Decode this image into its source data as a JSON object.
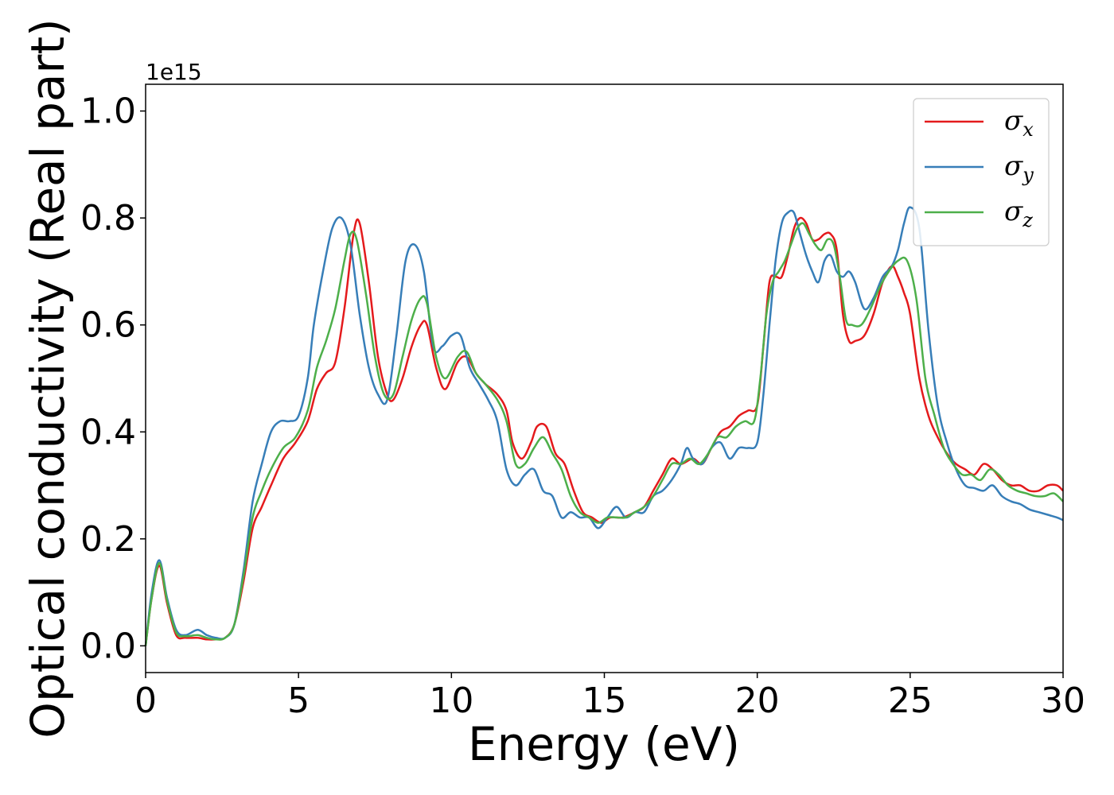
{
  "chart_data": {
    "type": "line",
    "title": "",
    "xlabel": "Energy (eV)",
    "ylabel": "Optical conductivity (Real part)",
    "y_offset_text": "1e15",
    "xlim": [
      0,
      30
    ],
    "ylim": [
      -0.05,
      1.05
    ],
    "x_ticks": [
      0,
      5,
      10,
      15,
      20,
      25,
      30
    ],
    "x_tick_labels": [
      "0",
      "5",
      "10",
      "15",
      "20",
      "25",
      "30"
    ],
    "y_ticks": [
      0.0,
      0.2,
      0.4,
      0.6,
      0.8,
      1.0
    ],
    "y_tick_labels": [
      "0.0",
      "0.2",
      "0.4",
      "0.6",
      "0.8",
      "1.0"
    ],
    "grid": false,
    "legend_position": "top-right",
    "series": [
      {
        "name": "σx",
        "name_base": "σ",
        "name_sub": "x",
        "color": "#e41a1c",
        "x": [
          0,
          0.2,
          0.45,
          0.7,
          1.0,
          1.3,
          1.7,
          2.0,
          2.3,
          2.6,
          2.9,
          3.2,
          3.5,
          3.8,
          4.1,
          4.5,
          4.9,
          5.3,
          5.6,
          5.9,
          6.2,
          6.5,
          6.8,
          7.0,
          7.3,
          7.6,
          7.9,
          8.1,
          8.4,
          8.7,
          9.0,
          9.2,
          9.5,
          9.8,
          10.2,
          10.5,
          10.8,
          11.1,
          11.5,
          11.8,
          12.0,
          12.3,
          12.6,
          12.8,
          13.1,
          13.4,
          13.7,
          14.0,
          14.3,
          14.6,
          14.9,
          15.2,
          15.6,
          16.0,
          16.3,
          16.6,
          16.9,
          17.2,
          17.5,
          17.9,
          18.2,
          18.5,
          18.8,
          19.1,
          19.4,
          19.7,
          20.0,
          20.2,
          20.4,
          20.6,
          20.8,
          21.0,
          21.2,
          21.4,
          21.6,
          21.8,
          22.0,
          22.2,
          22.4,
          22.6,
          22.8,
          23.0,
          23.2,
          23.5,
          23.8,
          24.1,
          24.4,
          24.6,
          24.8,
          25.0,
          25.3,
          25.6,
          25.9,
          26.2,
          26.5,
          26.8,
          27.1,
          27.4,
          27.7,
          28.0,
          28.3,
          28.6,
          28.9,
          29.2,
          29.5,
          29.8,
          30.0
        ],
        "y": [
          0.0,
          0.09,
          0.15,
          0.08,
          0.02,
          0.015,
          0.015,
          0.012,
          0.012,
          0.015,
          0.04,
          0.12,
          0.22,
          0.26,
          0.3,
          0.35,
          0.38,
          0.42,
          0.48,
          0.51,
          0.53,
          0.63,
          0.77,
          0.79,
          0.68,
          0.54,
          0.47,
          0.46,
          0.5,
          0.56,
          0.6,
          0.6,
          0.52,
          0.48,
          0.53,
          0.54,
          0.51,
          0.49,
          0.47,
          0.44,
          0.38,
          0.35,
          0.38,
          0.41,
          0.41,
          0.36,
          0.34,
          0.29,
          0.25,
          0.24,
          0.23,
          0.24,
          0.24,
          0.25,
          0.26,
          0.29,
          0.32,
          0.35,
          0.34,
          0.35,
          0.34,
          0.37,
          0.4,
          0.41,
          0.43,
          0.44,
          0.45,
          0.56,
          0.68,
          0.69,
          0.69,
          0.73,
          0.78,
          0.8,
          0.79,
          0.76,
          0.76,
          0.77,
          0.77,
          0.74,
          0.62,
          0.57,
          0.57,
          0.58,
          0.62,
          0.68,
          0.71,
          0.69,
          0.66,
          0.62,
          0.5,
          0.43,
          0.39,
          0.36,
          0.34,
          0.33,
          0.32,
          0.34,
          0.33,
          0.31,
          0.3,
          0.3,
          0.29,
          0.29,
          0.3,
          0.3,
          0.29
        ]
      },
      {
        "name": "σy",
        "name_base": "σ",
        "name_sub": "y",
        "color": "#377eb8",
        "x": [
          0,
          0.2,
          0.45,
          0.7,
          1.0,
          1.3,
          1.7,
          2.0,
          2.3,
          2.6,
          2.9,
          3.2,
          3.5,
          3.8,
          4.1,
          4.4,
          4.7,
          5.0,
          5.3,
          5.5,
          5.8,
          6.1,
          6.4,
          6.7,
          7.0,
          7.3,
          7.6,
          7.9,
          8.2,
          8.5,
          8.8,
          9.1,
          9.4,
          9.7,
          10.0,
          10.3,
          10.6,
          10.9,
          11.2,
          11.5,
          11.8,
          12.1,
          12.4,
          12.7,
          13.0,
          13.3,
          13.6,
          13.9,
          14.2,
          14.5,
          14.8,
          15.1,
          15.4,
          15.7,
          16.0,
          16.3,
          16.6,
          16.9,
          17.2,
          17.5,
          17.7,
          17.9,
          18.2,
          18.5,
          18.8,
          19.1,
          19.4,
          19.7,
          20.0,
          20.2,
          20.4,
          20.6,
          20.8,
          21.0,
          21.2,
          21.4,
          21.6,
          21.8,
          22.0,
          22.2,
          22.4,
          22.6,
          22.8,
          23.0,
          23.2,
          23.5,
          23.8,
          24.1,
          24.4,
          24.6,
          24.8,
          25.0,
          25.3,
          25.6,
          25.9,
          26.2,
          26.5,
          26.8,
          27.1,
          27.4,
          27.7,
          28.0,
          28.3,
          28.6,
          28.9,
          29.2,
          29.5,
          29.8,
          30.0
        ],
        "y": [
          0.0,
          0.1,
          0.16,
          0.09,
          0.03,
          0.02,
          0.03,
          0.02,
          0.015,
          0.015,
          0.04,
          0.14,
          0.27,
          0.34,
          0.4,
          0.42,
          0.42,
          0.43,
          0.5,
          0.6,
          0.7,
          0.78,
          0.8,
          0.75,
          0.62,
          0.52,
          0.47,
          0.46,
          0.58,
          0.72,
          0.75,
          0.7,
          0.56,
          0.56,
          0.58,
          0.58,
          0.52,
          0.49,
          0.46,
          0.42,
          0.33,
          0.3,
          0.32,
          0.33,
          0.29,
          0.28,
          0.24,
          0.25,
          0.24,
          0.24,
          0.22,
          0.24,
          0.26,
          0.24,
          0.25,
          0.25,
          0.28,
          0.29,
          0.31,
          0.34,
          0.37,
          0.35,
          0.34,
          0.37,
          0.38,
          0.35,
          0.37,
          0.37,
          0.38,
          0.47,
          0.6,
          0.72,
          0.79,
          0.81,
          0.81,
          0.77,
          0.73,
          0.7,
          0.68,
          0.72,
          0.73,
          0.7,
          0.69,
          0.7,
          0.68,
          0.63,
          0.65,
          0.69,
          0.71,
          0.74,
          0.79,
          0.82,
          0.78,
          0.59,
          0.45,
          0.38,
          0.33,
          0.3,
          0.295,
          0.29,
          0.3,
          0.28,
          0.27,
          0.265,
          0.255,
          0.25,
          0.245,
          0.24,
          0.235
        ]
      },
      {
        "name": "σz",
        "name_base": "σ",
        "name_sub": "z",
        "color": "#4daf4a",
        "x": [
          0,
          0.2,
          0.45,
          0.7,
          1.0,
          1.3,
          1.7,
          2.0,
          2.3,
          2.6,
          2.9,
          3.2,
          3.5,
          3.8,
          4.1,
          4.5,
          4.9,
          5.3,
          5.6,
          5.9,
          6.2,
          6.5,
          6.7,
          6.9,
          7.2,
          7.5,
          7.8,
          8.1,
          8.4,
          8.7,
          9.0,
          9.2,
          9.5,
          9.8,
          10.2,
          10.5,
          10.8,
          11.1,
          11.5,
          11.8,
          12.1,
          12.4,
          12.7,
          13.0,
          13.3,
          13.6,
          13.9,
          14.2,
          14.5,
          14.8,
          15.1,
          15.4,
          15.7,
          16.0,
          16.3,
          16.6,
          16.9,
          17.2,
          17.5,
          17.8,
          18.1,
          18.4,
          18.7,
          19.0,
          19.3,
          19.6,
          19.9,
          20.1,
          20.3,
          20.5,
          20.7,
          20.9,
          21.1,
          21.3,
          21.5,
          21.7,
          21.9,
          22.1,
          22.3,
          22.5,
          22.7,
          22.9,
          23.1,
          23.4,
          23.7,
          24.0,
          24.3,
          24.6,
          24.9,
          25.2,
          25.5,
          25.8,
          26.1,
          26.4,
          26.7,
          27.0,
          27.3,
          27.6,
          27.9,
          28.2,
          28.5,
          28.8,
          29.1,
          29.4,
          29.7,
          30.0
        ],
        "y": [
          0.0,
          0.09,
          0.155,
          0.085,
          0.025,
          0.018,
          0.02,
          0.015,
          0.012,
          0.015,
          0.04,
          0.13,
          0.24,
          0.29,
          0.33,
          0.37,
          0.39,
          0.44,
          0.52,
          0.57,
          0.63,
          0.72,
          0.77,
          0.76,
          0.66,
          0.54,
          0.47,
          0.47,
          0.54,
          0.61,
          0.65,
          0.64,
          0.54,
          0.5,
          0.54,
          0.55,
          0.51,
          0.49,
          0.46,
          0.42,
          0.34,
          0.34,
          0.37,
          0.39,
          0.36,
          0.33,
          0.28,
          0.25,
          0.24,
          0.23,
          0.24,
          0.24,
          0.24,
          0.25,
          0.26,
          0.28,
          0.31,
          0.34,
          0.34,
          0.35,
          0.34,
          0.36,
          0.39,
          0.39,
          0.41,
          0.42,
          0.42,
          0.5,
          0.62,
          0.68,
          0.7,
          0.72,
          0.75,
          0.78,
          0.79,
          0.77,
          0.75,
          0.74,
          0.76,
          0.75,
          0.69,
          0.61,
          0.6,
          0.6,
          0.63,
          0.67,
          0.7,
          0.72,
          0.72,
          0.65,
          0.5,
          0.43,
          0.37,
          0.34,
          0.32,
          0.32,
          0.31,
          0.33,
          0.32,
          0.3,
          0.29,
          0.285,
          0.28,
          0.28,
          0.285,
          0.27
        ]
      }
    ]
  }
}
